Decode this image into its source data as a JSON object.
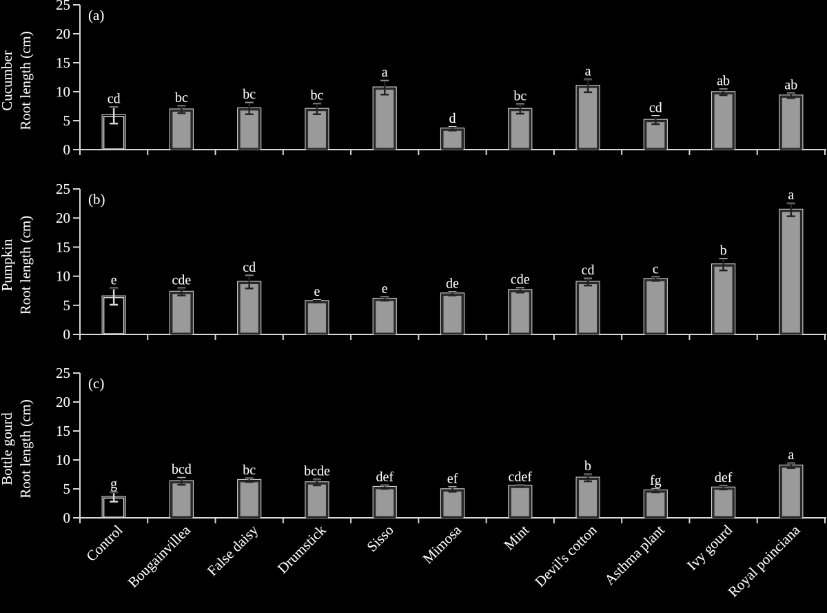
{
  "chart_data": {
    "type": "bar",
    "categories": [
      "Control",
      "Bougainvillea",
      "False daisy",
      "Drumstick",
      "Sisso",
      "Mimosa",
      "Mint",
      "Devil's cotton",
      "Asthma plant",
      "Ivy gourd",
      "Royal poinciana"
    ],
    "ylim": [
      0,
      25
    ],
    "yticks": [
      0,
      5,
      10,
      15,
      20,
      25
    ],
    "grid": false,
    "legend": null,
    "colors": {
      "control_fill": "#000000",
      "treatment_fill": "#9a9a9a",
      "bar_edge": "#2a2a2a",
      "axis": "#d8d8d8",
      "text": "#ffffff"
    },
    "panels": [
      {
        "id": "a",
        "panel_label": "(a)",
        "ylabel_line1": "Cucumber",
        "ylabel_line2": "Root length (cm)",
        "values": [
          5.9,
          6.9,
          7.1,
          7.0,
          10.7,
          3.6,
          7.0,
          11.0,
          5.1,
          9.9,
          9.3
        ],
        "errors": [
          1.4,
          0.6,
          1.0,
          0.9,
          1.2,
          0.3,
          0.8,
          1.1,
          0.7,
          0.5,
          0.4
        ],
        "letters": [
          "cd",
          "bc",
          "bc",
          "bc",
          "a",
          "d",
          "bc",
          "a",
          "cd",
          "ab",
          "ab"
        ]
      },
      {
        "id": "b",
        "panel_label": "(b)",
        "ylabel_line1": "Pumpkin",
        "ylabel_line2": "Root length (cm)",
        "values": [
          6.5,
          7.3,
          9.0,
          5.7,
          6.1,
          7.0,
          7.6,
          9.0,
          9.5,
          12.0,
          21.4
        ],
        "errors": [
          1.4,
          0.6,
          1.1,
          0.2,
          0.3,
          0.3,
          0.4,
          0.6,
          0.3,
          1.0,
          1.1
        ],
        "letters": [
          "e",
          "cde",
          "cd",
          "e",
          "e",
          "de",
          "cde",
          "cd",
          "c",
          "b",
          "a"
        ]
      },
      {
        "id": "c",
        "panel_label": "(c)",
        "ylabel_line1": "Bottle gourd",
        "ylabel_line2": "Root length (cm)",
        "values": [
          3.6,
          6.3,
          6.5,
          6.1,
          5.3,
          4.9,
          5.5,
          6.9,
          4.7,
          5.2,
          9.0
        ],
        "errors": [
          0.8,
          0.6,
          0.3,
          0.5,
          0.3,
          0.4,
          0.1,
          0.6,
          0.3,
          0.3,
          0.4
        ],
        "letters": [
          "g",
          "bcd",
          "bc",
          "bcde",
          "def",
          "ef",
          "cdef",
          "b",
          "fg",
          "def",
          "a"
        ]
      }
    ]
  }
}
